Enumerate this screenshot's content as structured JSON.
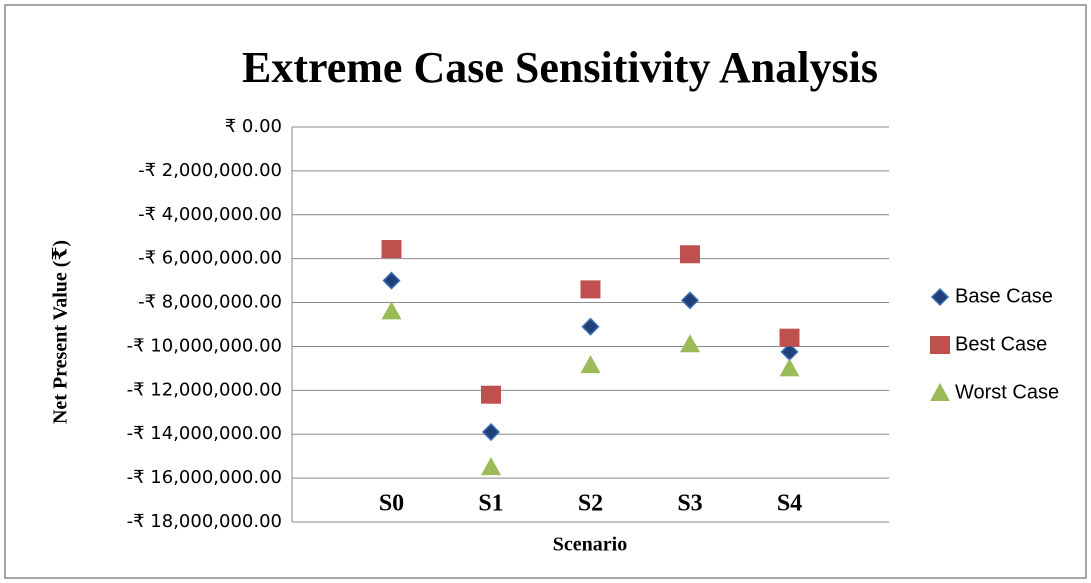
{
  "chart_data": {
    "type": "scatter",
    "title": "Extreme Case Sensitivity Analysis",
    "y_label": "Net Present Value (₹)",
    "x_label": "Scenario",
    "categories": [
      "S0",
      "S1",
      "S2",
      "S3",
      "S4"
    ],
    "series": [
      {
        "name": "Base Case",
        "color": "#1f3f7a",
        "marker": "diamond",
        "values": [
          -7000000,
          -13900000,
          -9100000,
          -7900000,
          -10250000
        ]
      },
      {
        "name": "Best Case",
        "color": "#c0504d",
        "marker": "square",
        "values": [
          -5560000,
          -12200000,
          -7400000,
          -5800000,
          -9600000
        ]
      },
      {
        "name": "Worst Case",
        "color": "#9bbb59",
        "marker": "triangle",
        "values": [
          -8400000,
          -15500000,
          -10850000,
          -9900000,
          -11000000
        ]
      }
    ],
    "ylim": [
      -18000000,
      0
    ],
    "yticks": [
      {
        "value": 0,
        "label": "₹ 0.00"
      },
      {
        "value": -2000000,
        "label": "-₹ 2,000,000.00"
      },
      {
        "value": -4000000,
        "label": "-₹ 4,000,000.00"
      },
      {
        "value": -6000000,
        "label": "-₹ 6,000,000.00"
      },
      {
        "value": -8000000,
        "label": "-₹ 8,000,000.00"
      },
      {
        "value": -10000000,
        "label": "-₹ 10,000,000.00"
      },
      {
        "value": -12000000,
        "label": "-₹ 12,000,000.00"
      },
      {
        "value": -14000000,
        "label": "-₹ 14,000,000.00"
      },
      {
        "value": -16000000,
        "label": "-₹ 16,000,000.00"
      },
      {
        "value": -18000000,
        "label": "-₹ 18,000,000.00"
      }
    ],
    "grid": true,
    "legend": "right"
  }
}
